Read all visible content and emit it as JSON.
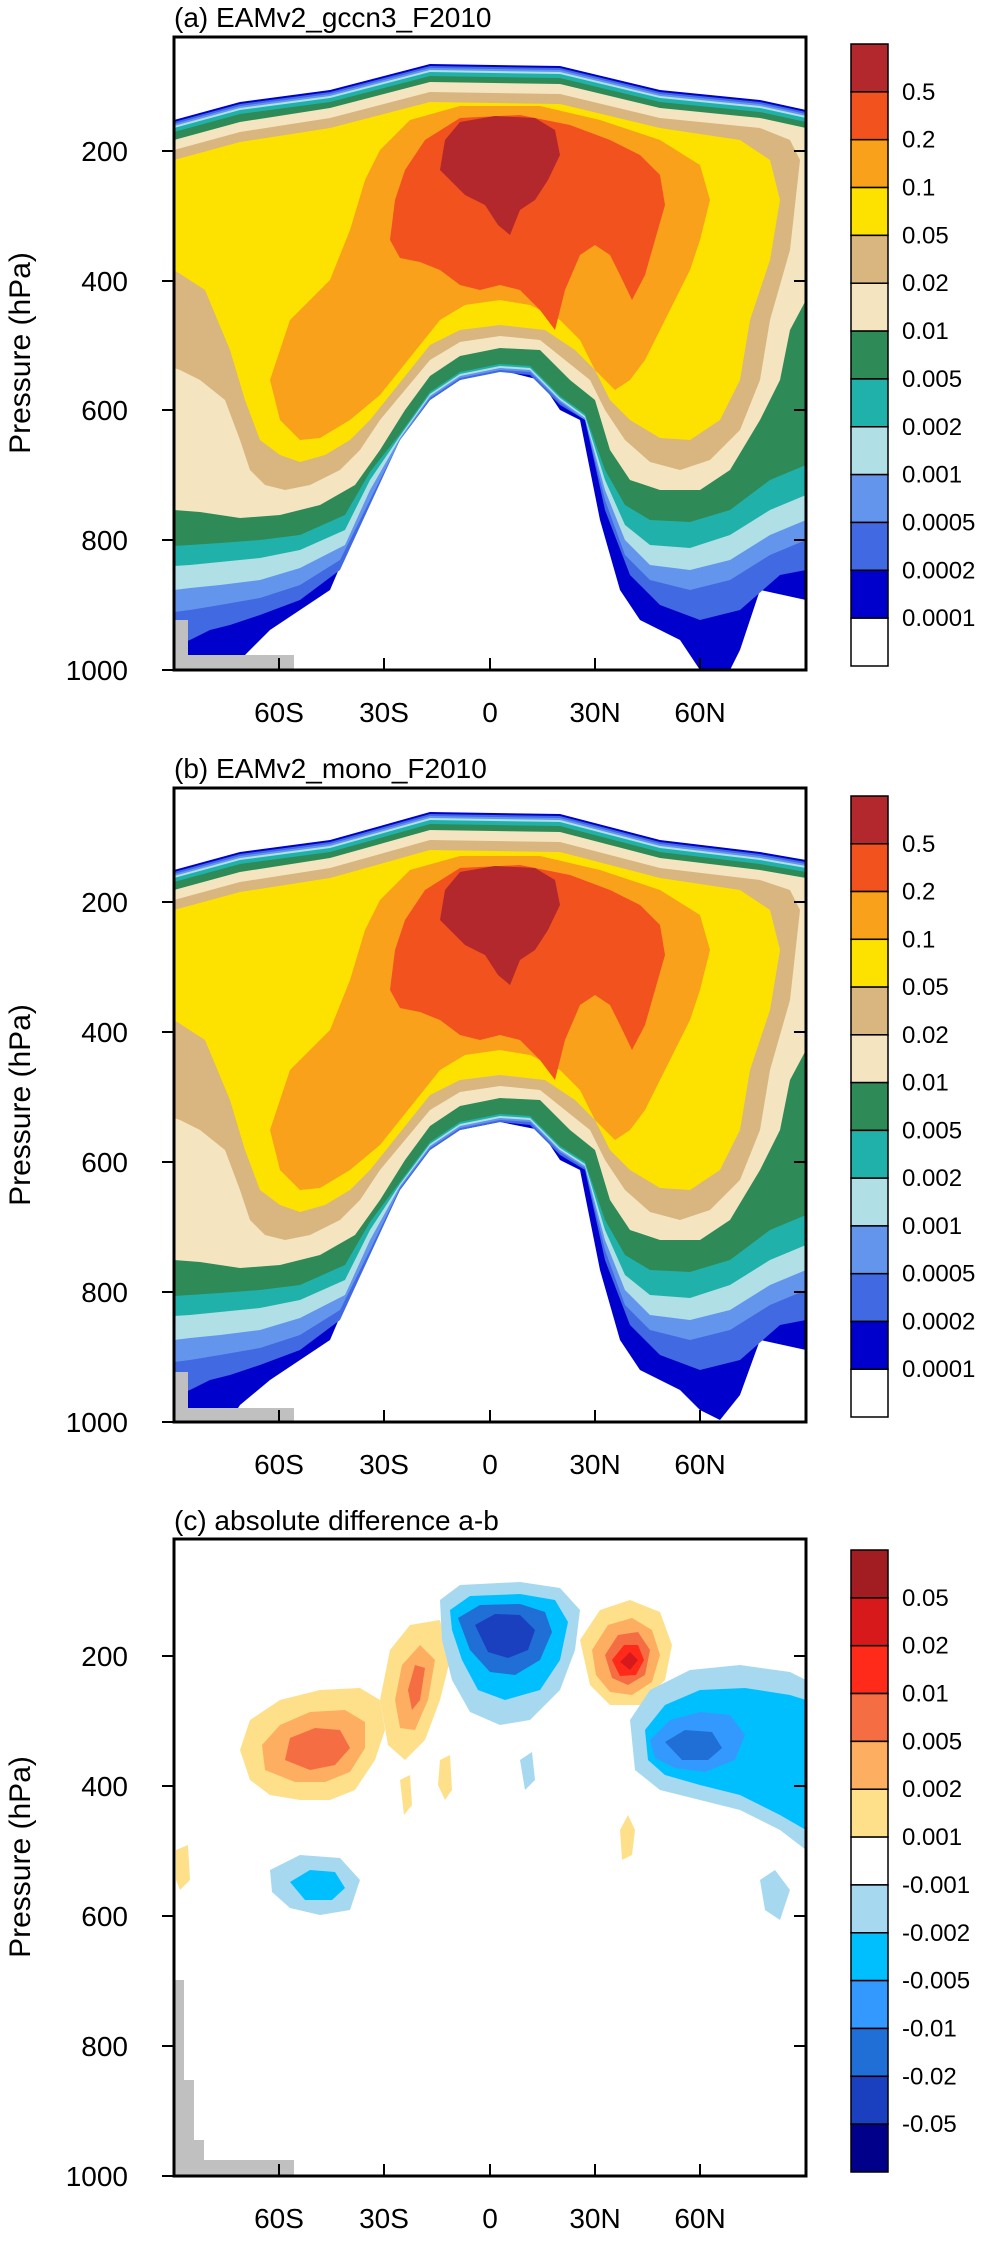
{
  "chart_data": [
    {
      "type": "contour",
      "title": "(a) EAMv2_gccn3_F2010",
      "xlabel": "",
      "ylabel": "Pressure (hPa)",
      "x_ticks": [
        "60S",
        "30S",
        "0",
        "30N",
        "60N"
      ],
      "x_tick_values": [
        -60,
        -30,
        0,
        30,
        60
      ],
      "xlim": [
        -90,
        90
      ],
      "y_ticks": [
        "200",
        "400",
        "600",
        "800",
        "1000"
      ],
      "y_tick_values": [
        200,
        400,
        600,
        800,
        1000
      ],
      "ylim": [
        1000,
        50
      ],
      "y_inverted": true,
      "colorbar_levels": [
        "0.5",
        "0.2",
        "0.1",
        "0.05",
        "0.02",
        "0.01",
        "0.005",
        "0.002",
        "0.001",
        "0.0005",
        "0.0002",
        "0.0001"
      ],
      "colorbar_colors": [
        "#b2282c",
        "#f2521e",
        "#f9a11b",
        "#fde200",
        "#d9b57f",
        "#f4e5c0",
        "#2e8b57",
        "#20b2aa",
        "#b0e0e6",
        "#6495ed",
        "#4169e1",
        "#0000cd",
        "#ffffff"
      ]
    },
    {
      "type": "contour",
      "title": "(b) EAMv2_mono_F2010",
      "xlabel": "",
      "ylabel": "Pressure (hPa)",
      "x_ticks": [
        "60S",
        "30S",
        "0",
        "30N",
        "60N"
      ],
      "x_tick_values": [
        -60,
        -30,
        0,
        30,
        60
      ],
      "xlim": [
        -90,
        90
      ],
      "y_ticks": [
        "200",
        "400",
        "600",
        "800",
        "1000"
      ],
      "y_tick_values": [
        200,
        400,
        600,
        800,
        1000
      ],
      "ylim": [
        1000,
        50
      ],
      "y_inverted": true,
      "colorbar_levels": [
        "0.5",
        "0.2",
        "0.1",
        "0.05",
        "0.02",
        "0.01",
        "0.005",
        "0.002",
        "0.001",
        "0.0005",
        "0.0002",
        "0.0001"
      ],
      "colorbar_colors": [
        "#b2282c",
        "#f2521e",
        "#f9a11b",
        "#fde200",
        "#d9b57f",
        "#f4e5c0",
        "#2e8b57",
        "#20b2aa",
        "#b0e0e6",
        "#6495ed",
        "#4169e1",
        "#0000cd",
        "#ffffff"
      ]
    },
    {
      "type": "contour",
      "title": "(c) absolute difference a-b",
      "xlabel": "",
      "ylabel": "Pressure (hPa)",
      "x_ticks": [
        "60S",
        "30S",
        "0",
        "30N",
        "60N"
      ],
      "x_tick_values": [
        -60,
        -30,
        0,
        30,
        60
      ],
      "xlim": [
        -90,
        90
      ],
      "y_ticks": [
        "200",
        "400",
        "600",
        "800",
        "1000"
      ],
      "y_tick_values": [
        200,
        400,
        600,
        800,
        1000
      ],
      "ylim": [
        1000,
        50
      ],
      "y_inverted": true,
      "colorbar_levels": [
        "0.05",
        "0.02",
        "0.01",
        "0.005",
        "0.002",
        "0.001",
        "-0.001",
        "-0.002",
        "-0.005",
        "-0.01",
        "-0.02",
        "-0.05"
      ],
      "colorbar_colors": [
        "#a11d22",
        "#d7191c",
        "#ff2a1a",
        "#f46d43",
        "#fdae61",
        "#fee08b",
        "#ffffff",
        "#a6d8f0",
        "#00bfff",
        "#3399ff",
        "#1f6fd6",
        "#1a3fbf",
        "#00008b"
      ]
    }
  ]
}
